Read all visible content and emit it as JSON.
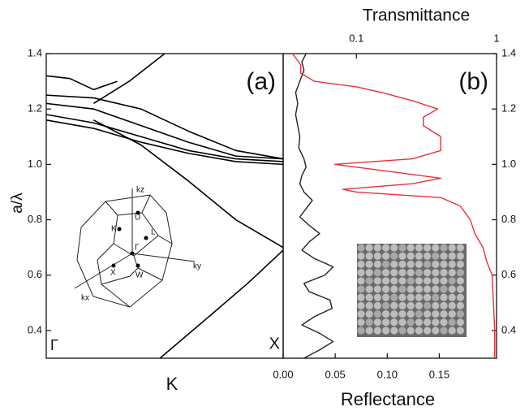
{
  "chart_data": [
    {
      "type": "line",
      "ylabel": "a/λ",
      "xlabel": "K",
      "panel_label": "(a)",
      "x_start_label": "Γ",
      "x_end_label": "X",
      "xlim": [
        0,
        1
      ],
      "ylim": [
        0.3,
        1.4
      ],
      "yticks": [
        0.4,
        0.6,
        0.8,
        {
          "value": 1.0,
          "label": "1.0"
        },
        1.2,
        1.4
      ],
      "inset_labels": [
        "kz",
        "U",
        "K",
        "L",
        "Γ",
        "ky",
        "X",
        "W",
        "kx"
      ],
      "series": [
        {
          "color": "#000000",
          "x": [
            0.48,
            0.7,
            0.85,
            1
          ],
          "values": [
            0.3,
            0.46,
            0.57,
            0.69
          ]
        },
        {
          "color": "#000000",
          "x": [
            0.2,
            0.4,
            0.6,
            0.8,
            1
          ],
          "values": [
            1.16,
            1.07,
            0.94,
            0.8,
            0.7
          ]
        },
        {
          "color": "#000000",
          "x": [
            0,
            0.2,
            0.4,
            0.6,
            0.8,
            1
          ],
          "values": [
            1.18,
            1.15,
            1.1,
            1.05,
            1.02,
            1.01
          ]
        },
        {
          "color": "#000000",
          "x": [
            0,
            0.2,
            0.4,
            0.6,
            0.8,
            1
          ],
          "values": [
            1.16,
            1.13,
            1.08,
            1.04,
            1.01,
            1.0
          ]
        },
        {
          "color": "#000000",
          "x": [
            0,
            0.2,
            0.4,
            0.6,
            0.8,
            1
          ],
          "values": [
            1.22,
            1.2,
            1.14,
            1.08,
            1.03,
            1.02
          ]
        },
        {
          "color": "#000000",
          "x": [
            0,
            0.2,
            0.4,
            0.6,
            0.8,
            1
          ],
          "values": [
            1.25,
            1.24,
            1.2,
            1.12,
            1.05,
            1.02
          ]
        },
        {
          "color": "#000000",
          "x": [
            0,
            0.1,
            0.2,
            0.3
          ],
          "values": [
            1.32,
            1.31,
            1.27,
            1.3
          ]
        },
        {
          "color": "#000000",
          "x": [
            0.2,
            0.35,
            0.5
          ],
          "values": [
            1.22,
            1.3,
            1.4
          ]
        }
      ]
    },
    {
      "type": "line",
      "panel_label": "(b)",
      "xlabel": "Reflectance",
      "x2label": "Transmittance",
      "xlim": [
        0,
        0.205
      ],
      "xticks": [
        {
          "value": 0,
          "label": "0.00"
        },
        {
          "value": 0.05,
          "label": "0.05"
        },
        {
          "value": 0.1,
          "label": "0.10"
        },
        {
          "value": 0.15,
          "label": "0.15"
        }
      ],
      "x2lim": [
        0.03,
        1
      ],
      "x2ticks": [
        0.1,
        1
      ],
      "x2scale": "log",
      "ylim": [
        0.3,
        1.4
      ],
      "yticks": [
        0.4,
        0.6,
        0.8,
        {
          "value": 1.0,
          "label": "1.0"
        },
        1.2,
        1.4
      ],
      "series": [
        {
          "color": "#222222",
          "y": [
            0.3,
            0.33,
            0.36,
            0.39,
            0.42,
            0.45,
            0.48,
            0.51,
            0.54,
            0.57,
            0.6,
            0.63,
            0.66,
            0.69,
            0.72,
            0.75,
            0.78,
            0.81,
            0.84,
            0.87,
            0.9,
            0.93,
            0.96,
            0.99,
            1.02,
            1.06,
            1.1,
            1.14,
            1.18,
            1.22,
            1.26,
            1.3,
            1.34,
            1.37,
            1.4
          ],
          "values": [
            0.02,
            0.035,
            0.048,
            0.035,
            0.018,
            0.03,
            0.047,
            0.045,
            0.025,
            0.02,
            0.04,
            0.048,
            0.03,
            0.018,
            0.025,
            0.035,
            0.025,
            0.016,
            0.022,
            0.028,
            0.02,
            0.016,
            0.018,
            0.022,
            0.02,
            0.015,
            0.016,
            0.014,
            0.012,
            0.014,
            0.012,
            0.016,
            0.02,
            0.018,
            0.022
          ]
        },
        {
          "color": "#e8303a",
          "axis": "x2",
          "y": [
            0.3,
            0.4,
            0.5,
            0.6,
            0.65,
            0.7,
            0.75,
            0.8,
            0.85,
            0.88,
            0.9,
            0.91,
            0.93,
            0.95,
            0.97,
            1.0,
            1.02,
            1.05,
            1.1,
            1.14,
            1.17,
            1.2,
            1.23,
            1.26,
            1.28,
            1.3,
            1.33,
            1.36,
            1.4
          ],
          "values": [
            0.97,
            0.97,
            0.95,
            0.93,
            0.85,
            0.8,
            0.7,
            0.65,
            0.55,
            0.4,
            0.1,
            0.08,
            0.25,
            0.4,
            0.2,
            0.07,
            0.25,
            0.4,
            0.4,
            0.3,
            0.3,
            0.38,
            0.25,
            0.15,
            0.1,
            0.05,
            0.04,
            0.04,
            0.035
          ]
        }
      ]
    }
  ]
}
